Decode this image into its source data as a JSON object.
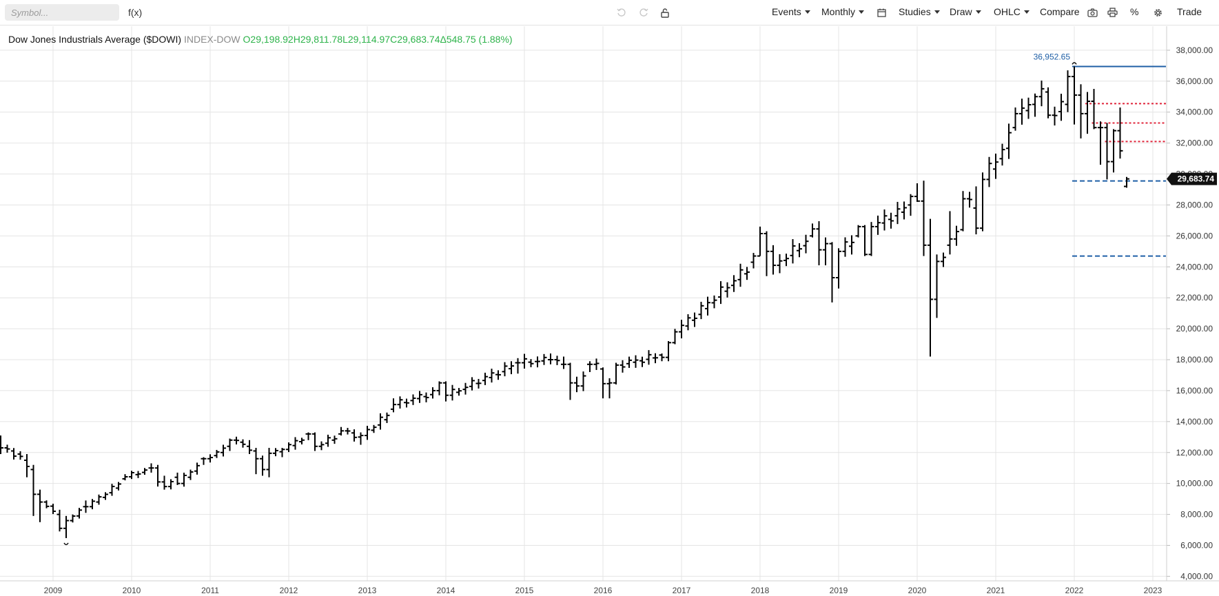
{
  "toolbar": {
    "symbol_placeholder": "Symbol...",
    "fx_label": "f(x)",
    "icons": [
      "undo-icon",
      "redo-icon",
      "unlock-icon",
      "calendar-icon",
      "camera-icon",
      "print-icon",
      "gear-icon"
    ],
    "events_label": "Events",
    "interval_label": "Monthly",
    "studies_label": "Studies",
    "draw_label": "Draw",
    "chart_style_label": "OHLC",
    "compare_label": "Compare",
    "percent_label": "%",
    "trade_label": "Trade"
  },
  "legend": {
    "name": "Dow Jones Industrials Average ($DOWI)",
    "exchange": "INDEX-DOW",
    "open": "O29,198.92",
    "high": "H29,811.78",
    "low": "L29,114.97",
    "close": "C29,683.74",
    "change": "Δ548.75 (1.88%)"
  },
  "chart_data": {
    "type": "ohlc",
    "interval": "monthly",
    "title": "Dow Jones Industrials Average ($DOWI)",
    "x_axis": {
      "type": "date",
      "range": [
        "2008-05",
        "2023-01"
      ],
      "tick_labels": [
        "2009",
        "2010",
        "2011",
        "2012",
        "2013",
        "2014",
        "2015",
        "2016",
        "2017",
        "2018",
        "2019",
        "2020",
        "2021",
        "2022",
        "2023"
      ]
    },
    "y_axis": {
      "range": [
        4000,
        39000
      ],
      "position": "right",
      "tick_labels": [
        "4,000.00",
        "6,000.00",
        "8,000.00",
        "10,000.00",
        "12,000.00",
        "14,000.00",
        "16,000.00",
        "18,000.00",
        "20,000.00",
        "22,000.00",
        "24,000.00",
        "26,000.00",
        "28,000.00",
        "30,000.00",
        "32,000.00",
        "34,000.00",
        "36,000.00",
        "38,000.00"
      ]
    },
    "grid": true,
    "bar_color": "#000000",
    "last_price": {
      "value": 29683.74,
      "label": "29,683.74"
    },
    "high_marker": {
      "value": 36952.65,
      "label": "36,952.65",
      "date": "2022-01",
      "color": "#1f5fa6"
    },
    "low_marker": {
      "value": 6469,
      "date": "2009-03"
    },
    "horizontal_lines": [
      {
        "value": 36950,
        "style": "solid",
        "color": "#1f5fa6",
        "from": "2022-01"
      },
      {
        "value": 34550,
        "style": "dotted",
        "color": "#e0243a",
        "from": "2022-03"
      },
      {
        "value": 33300,
        "style": "dotted",
        "color": "#e0243a",
        "from": "2022-04"
      },
      {
        "value": 32100,
        "style": "dotted",
        "color": "#e0243a",
        "from": "2022-06"
      },
      {
        "value": 29550,
        "style": "dashed",
        "color": "#1f5fa6",
        "from": "2022-01"
      },
      {
        "value": 24700,
        "style": "dashed",
        "color": "#1f5fa6",
        "from": "2022-01"
      }
    ],
    "anchors": [
      [
        "2008-05",
        12700,
        12300,
        13100,
        11900
      ],
      [
        "2008-09",
        11500,
        11100,
        11900,
        10400
      ],
      [
        "2008-10",
        10900,
        9300,
        11200,
        7900
      ],
      [
        "2008-11",
        9300,
        8800,
        9600,
        7500
      ],
      [
        "2009-02",
        8000,
        7100,
        8300,
        6900
      ],
      [
        "2009-03",
        7100,
        7600,
        7900,
        6469
      ],
      [
        "2009-06",
        8500,
        8500,
        8900,
        8100
      ],
      [
        "2009-12",
        10300,
        10430,
        10600,
        10200
      ],
      [
        "2010-04",
        11000,
        11000,
        11300,
        10700
      ],
      [
        "2010-05",
        11000,
        10100,
        11200,
        9800
      ],
      [
        "2010-06",
        10100,
        9800,
        10500,
        9600
      ],
      [
        "2010-08",
        10400,
        10000,
        10700,
        9900
      ],
      [
        "2010-12",
        11600,
        11600,
        11700,
        11200
      ],
      [
        "2011-04",
        12400,
        12800,
        12900,
        12100
      ],
      [
        "2011-07",
        12400,
        12150,
        12800,
        11900
      ],
      [
        "2011-08",
        12100,
        11600,
        12300,
        10600
      ],
      [
        "2011-09",
        11600,
        10900,
        11800,
        10500
      ],
      [
        "2011-10",
        10900,
        11950,
        12300,
        10400
      ],
      [
        "2011-12",
        12050,
        12200,
        12300,
        11700
      ],
      [
        "2012-04",
        13200,
        13200,
        13300,
        12800
      ],
      [
        "2012-05",
        13200,
        12400,
        13300,
        12100
      ],
      [
        "2012-09",
        13200,
        13400,
        13650,
        13100
      ],
      [
        "2012-12",
        13000,
        13100,
        13300,
        12500
      ],
      [
        "2013-05",
        14800,
        15100,
        15500,
        14600
      ],
      [
        "2013-12",
        16000,
        16500,
        16600,
        15700
      ],
      [
        "2014-01",
        16500,
        15700,
        16600,
        15300
      ],
      [
        "2014-12",
        17800,
        17800,
        18100,
        17100
      ],
      [
        "2015-05",
        18000,
        18000,
        18400,
        17700
      ],
      [
        "2015-07",
        17700,
        17700,
        18200,
        17400
      ],
      [
        "2015-08",
        17700,
        16500,
        17800,
        15400
      ],
      [
        "2015-09",
        16500,
        16300,
        16900,
        15900
      ],
      [
        "2015-11",
        17700,
        17700,
        17900,
        17200
      ],
      [
        "2016-01",
        17400,
        16450,
        17500,
        15500
      ],
      [
        "2016-02",
        16450,
        16500,
        16800,
        15500
      ],
      [
        "2016-03",
        16500,
        17650,
        17800,
        16400
      ],
      [
        "2016-10",
        18300,
        18150,
        18400,
        17900
      ],
      [
        "2016-11",
        18150,
        19100,
        19200,
        17900
      ],
      [
        "2016-12",
        19100,
        19800,
        19990,
        19000
      ],
      [
        "2017-12",
        24300,
        24700,
        24900,
        23900
      ],
      [
        "2018-01",
        24700,
        26150,
        26600,
        24700
      ],
      [
        "2018-02",
        26150,
        25000,
        26300,
        23400
      ],
      [
        "2018-03",
        25000,
        24100,
        25400,
        23500
      ],
      [
        "2018-09",
        26000,
        26450,
        26800,
        25900
      ],
      [
        "2018-10",
        26450,
        25100,
        26950,
        24100
      ],
      [
        "2018-11",
        25100,
        25500,
        25900,
        24100
      ],
      [
        "2018-12",
        25500,
        23300,
        25600,
        21700
      ],
      [
        "2019-01",
        23300,
        25000,
        25200,
        22600
      ],
      [
        "2019-04",
        26000,
        26600,
        26700,
        25900
      ],
      [
        "2019-05",
        26600,
        24800,
        26700,
        24700
      ],
      [
        "2019-06",
        24800,
        26600,
        26900,
        24700
      ],
      [
        "2019-12",
        28000,
        28550,
        28700,
        27300
      ],
      [
        "2020-01",
        28550,
        28250,
        29400,
        28200
      ],
      [
        "2020-02",
        28250,
        25400,
        29570,
        24700
      ],
      [
        "2020-03",
        25400,
        21900,
        27100,
        18200
      ],
      [
        "2020-04",
        21900,
        24350,
        24800,
        20700
      ],
      [
        "2020-06",
        25400,
        25800,
        27600,
        24800
      ],
      [
        "2020-08",
        26400,
        28400,
        28900,
        26300
      ],
      [
        "2020-10",
        27800,
        26500,
        29200,
        26100
      ],
      [
        "2020-11",
        26500,
        29650,
        30100,
        26300
      ],
      [
        "2021-04",
        33000,
        33900,
        34300,
        32800
      ],
      [
        "2021-07",
        34500,
        35000,
        35200,
        33700
      ],
      [
        "2021-09",
        35300,
        33800,
        35600,
        33600
      ],
      [
        "2021-12",
        34500,
        36300,
        36700,
        34000
      ],
      [
        "2022-01",
        36300,
        35100,
        36952.65,
        33200
      ],
      [
        "2022-02",
        35100,
        33900,
        35800,
        32300
      ],
      [
        "2022-03",
        33900,
        34700,
        35300,
        32600
      ],
      [
        "2022-04",
        34700,
        33000,
        35500,
        32900
      ],
      [
        "2022-05",
        33000,
        33000,
        33400,
        30600
      ],
      [
        "2022-06",
        33000,
        30800,
        33300,
        29650
      ],
      [
        "2022-07",
        30800,
        32800,
        32900,
        30100
      ],
      [
        "2022-08",
        32800,
        31500,
        34300,
        31000
      ],
      [
        "2022-09",
        29198.92,
        29683.74,
        29811.78,
        29114.97
      ]
    ]
  }
}
